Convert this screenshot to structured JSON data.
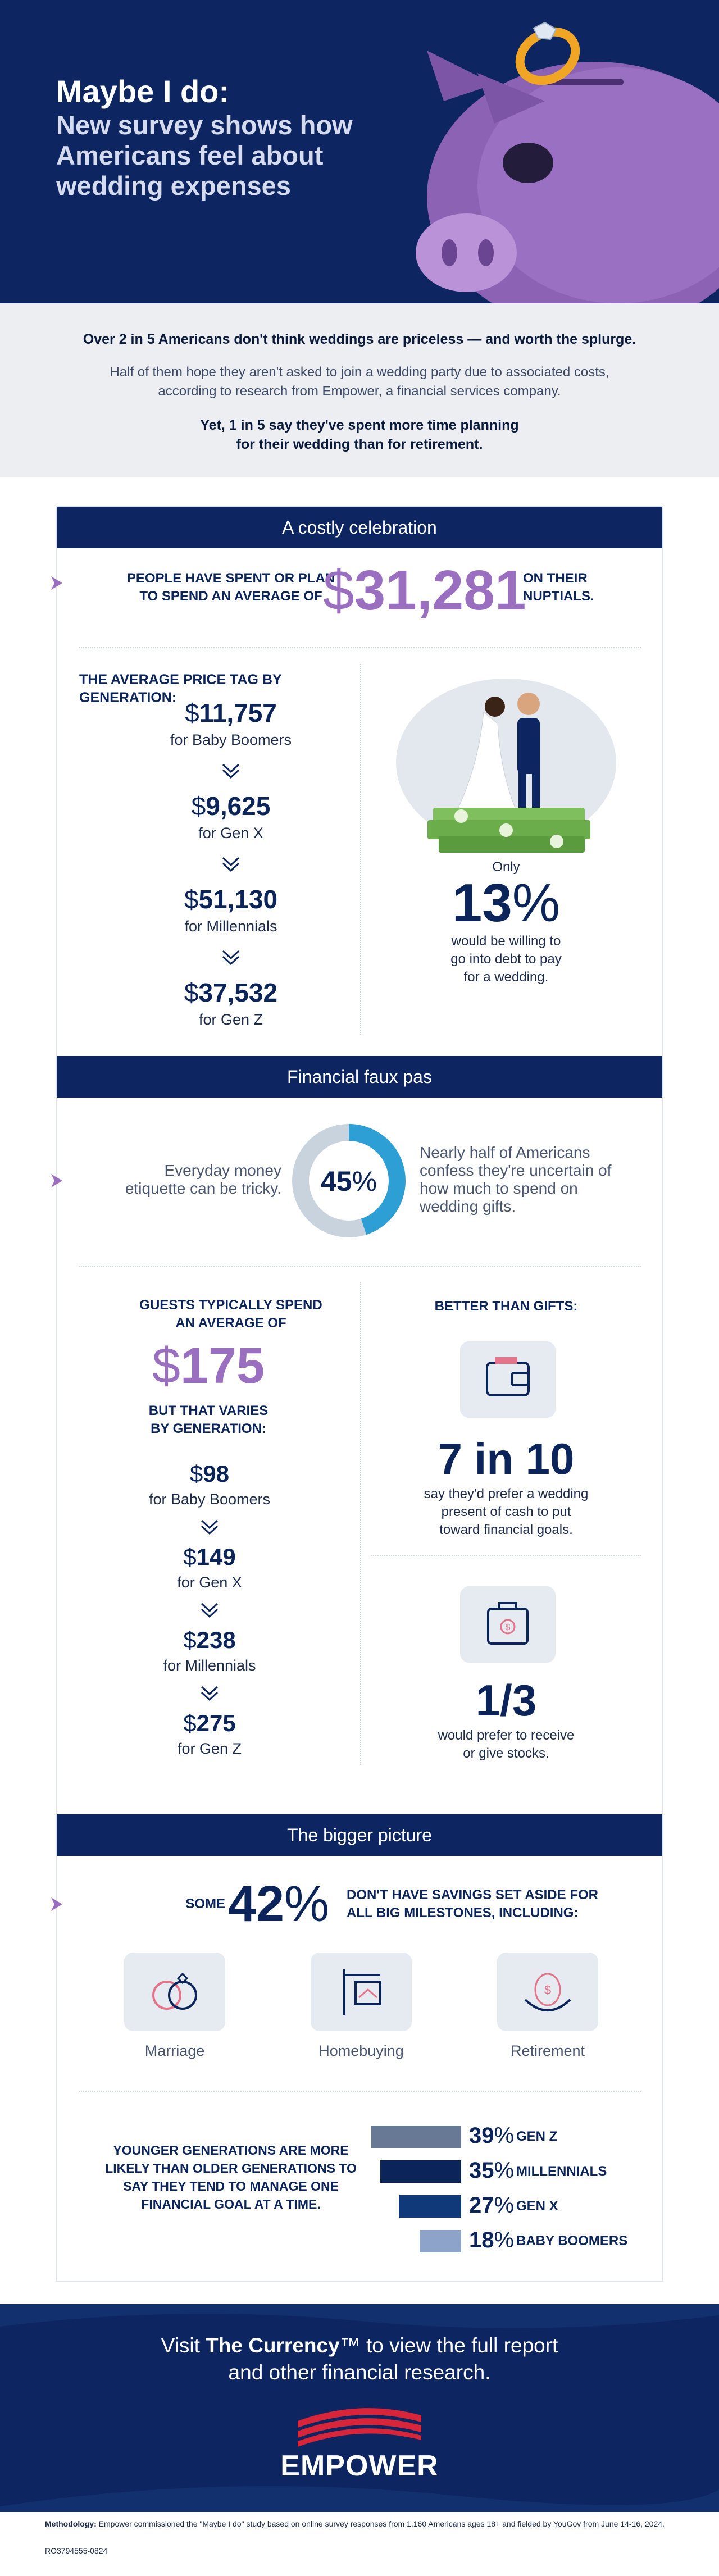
{
  "hero": {
    "title_line1": "Maybe I do:",
    "title_line2": "New survey shows how",
    "title_line3": "Americans feel about",
    "title_line4": "wedding expenses"
  },
  "intro": {
    "headline": "Over 2 in 5 Americans don't think weddings are priceless — and worth the splurge.",
    "para_line1": "Half of them hope they aren't asked to join a wedding party due to associated costs,",
    "para_line2": "according to research from Empower, a financial services company.",
    "yet_line1": "Yet, 1 in 5 say they've spent more time planning",
    "yet_line2": "for their wedding than for retirement."
  },
  "sections": {
    "costly": "A costly celebration",
    "fauxpas": "Financial faux pas",
    "bigger": "The bigger picture"
  },
  "costly": {
    "avg_left_line1": "PEOPLE HAVE SPENT OR PLAN",
    "avg_left_line2": "TO SPEND AN AVERAGE OF",
    "avg_currency": "$",
    "avg_value": "31,281",
    "avg_right_line1": "ON THEIR",
    "avg_right_line2": "NUPTIALS.",
    "gen_heading": "THE AVERAGE PRICE TAG BY GENERATION:",
    "gens": [
      {
        "currency": "$",
        "amount": "11,757",
        "label": "for Baby Boomers"
      },
      {
        "currency": "$",
        "amount": "9,625",
        "label": "for Gen X"
      },
      {
        "currency": "$",
        "amount": "51,130",
        "label": "for Millennials"
      },
      {
        "currency": "$",
        "amount": "37,532",
        "label": "for Gen Z"
      }
    ],
    "only": "Only",
    "debt_number": "13",
    "debt_pct": "%",
    "debt_line1": "would be willing to",
    "debt_line2": "go into debt to pay",
    "debt_line3": "for a wedding."
  },
  "fauxpas": {
    "left_line1": "Everyday money",
    "left_line2": "etiquette can be tricky.",
    "donut_number": "45",
    "donut_pct": "%",
    "right_line1": "Nearly half of Americans",
    "right_line2": "confess they're uncertain of",
    "right_line3": "how much to spend on",
    "right_line4": "wedding gifts.",
    "guests_line1": "GUESTS TYPICALLY SPEND",
    "guests_line2": "AN AVERAGE OF",
    "guests_currency": "$",
    "guests_value": "175",
    "varies_line1": "BUT THAT VARIES",
    "varies_line2": "BY GENERATION:",
    "gens": [
      {
        "currency": "$",
        "amount": "98",
        "label": "for Baby Boomers"
      },
      {
        "currency": "$",
        "amount": "149",
        "label": "for Gen X"
      },
      {
        "currency": "$",
        "amount": "238",
        "label": "for Millennials"
      },
      {
        "currency": "$",
        "amount": "275",
        "label": "for Gen Z"
      }
    ],
    "better": "BETTER THAN GIFTS:",
    "seven": "7 in 10",
    "seven_line1": "say they'd prefer a wedding",
    "seven_line2": "present of cash to put",
    "seven_line3": "toward financial goals.",
    "third": "1/3",
    "third_line1": "would prefer to receive",
    "third_line2": "or give stocks."
  },
  "bigger": {
    "some": "SOME",
    "some_number": "42",
    "some_pct": "%",
    "some_right_line1": "DON'T HAVE SAVINGS SET ASIDE FOR",
    "some_right_line2": "ALL BIG MILESTONES, INCLUDING:",
    "milestones": [
      "Marriage",
      "Homebuying",
      "Retirement"
    ],
    "younger_line1": "YOUNGER GENERATIONS ARE MORE",
    "younger_line2": "LIKELY THAN OLDER GENERATIONS TO",
    "younger_line3": "SAY THEY TEND TO MANAGE ONE",
    "younger_line4": "FINANCIAL GOAL AT A TIME."
  },
  "chart_data": {
    "type": "bar",
    "categories": [
      "GEN Z",
      "MILLENNIALS",
      "GEN X",
      "BABY BOOMERS"
    ],
    "values": [
      39,
      35,
      27,
      18
    ],
    "value_labels": [
      "39",
      "35",
      "27",
      "18"
    ],
    "value_suffix": "%",
    "colors": [
      "#687996",
      "#0b2459",
      "#10397a",
      "#8da4c8"
    ]
  },
  "footer": {
    "visit_pre": "Visit ",
    "visit_brand": "The Currency",
    "visit_tm": "™",
    "visit_post": " to view the full report",
    "visit_line2": "and other financial research.",
    "logo": "EMPOWER",
    "method_label": "Methodology:",
    "method_text": " Empower commissioned the \"Maybe I do\" study based on online survey responses from 1,160 Americans ages 18+ and fielded by YouGov from June 14-16, 2024.",
    "code": "RO3794555-0824"
  },
  "colors": {
    "navy": "#0d2560",
    "purple": "#9b6fc0",
    "light_grey": "#eceef2"
  }
}
